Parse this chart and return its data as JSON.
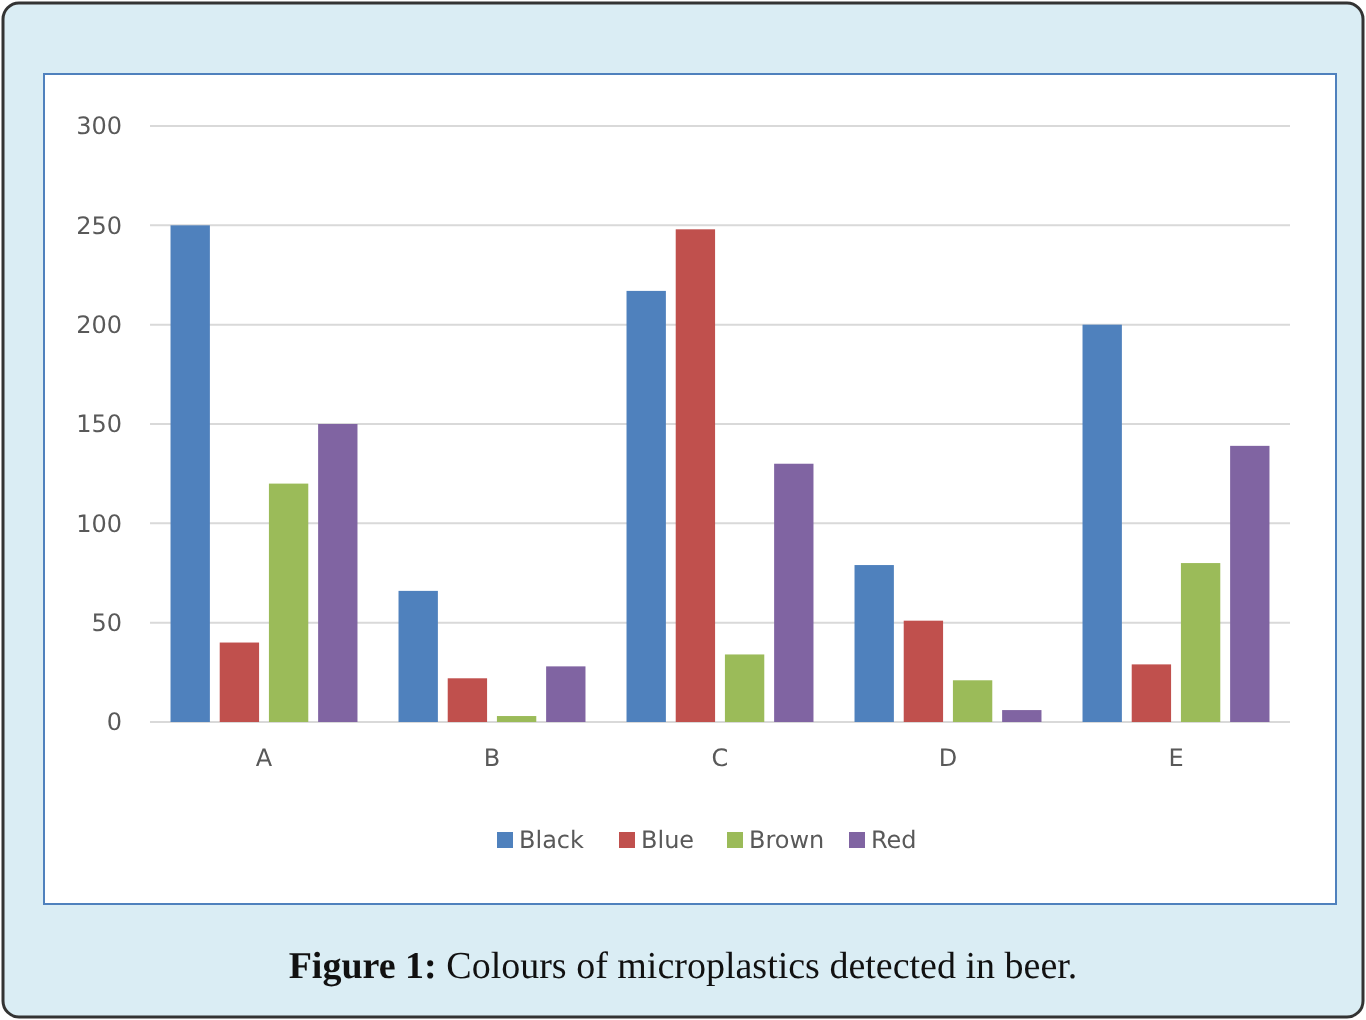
{
  "chart_data": {
    "type": "bar",
    "title": "Figure 1: Colours of microplastics detected in beer.",
    "categories": [
      "A",
      "B",
      "C",
      "D",
      "E"
    ],
    "series": [
      {
        "name": "Black",
        "color": "#4f81bd",
        "values": [
          250,
          66,
          217,
          79,
          200
        ]
      },
      {
        "name": "Blue",
        "color": "#c0504d",
        "values": [
          40,
          22,
          248,
          51,
          29
        ]
      },
      {
        "name": "Brown",
        "color": "#9bbb59",
        "values": [
          120,
          3,
          34,
          21,
          80
        ]
      },
      {
        "name": "Red",
        "color": "#8064a2",
        "values": [
          150,
          28,
          130,
          6,
          139
        ]
      }
    ],
    "ylim": [
      0,
      300
    ],
    "yticks": [
      0,
      50,
      100,
      150,
      200,
      250,
      300
    ],
    "grid": "y",
    "legend": "bottom"
  }
}
